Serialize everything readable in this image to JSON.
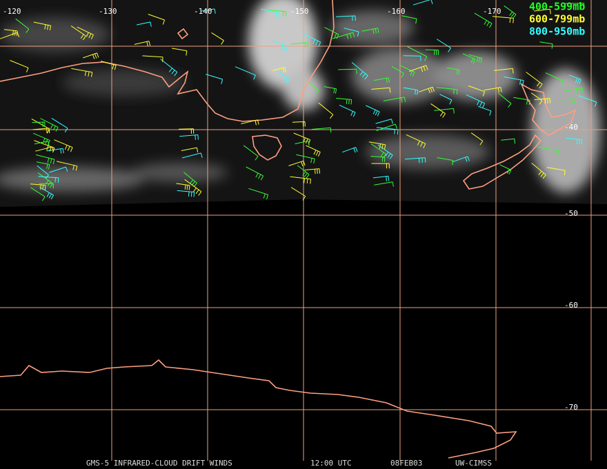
{
  "map": {
    "longitude_labels": [
      "-120",
      "-130",
      "-140",
      "-150",
      "-160",
      "-170"
    ],
    "latitude_labels": [
      "-40",
      "-50",
      "-60",
      "-70"
    ],
    "legend": [
      "400-599mb",
      "600-799mb",
      "800-950mb"
    ],
    "footer": [
      "GMS-5 INFRARED-CLOUD DRIFT WINDS",
      "12:00 UTC",
      "08FEB03",
      "UW-CIMSS"
    ]
  }
}
